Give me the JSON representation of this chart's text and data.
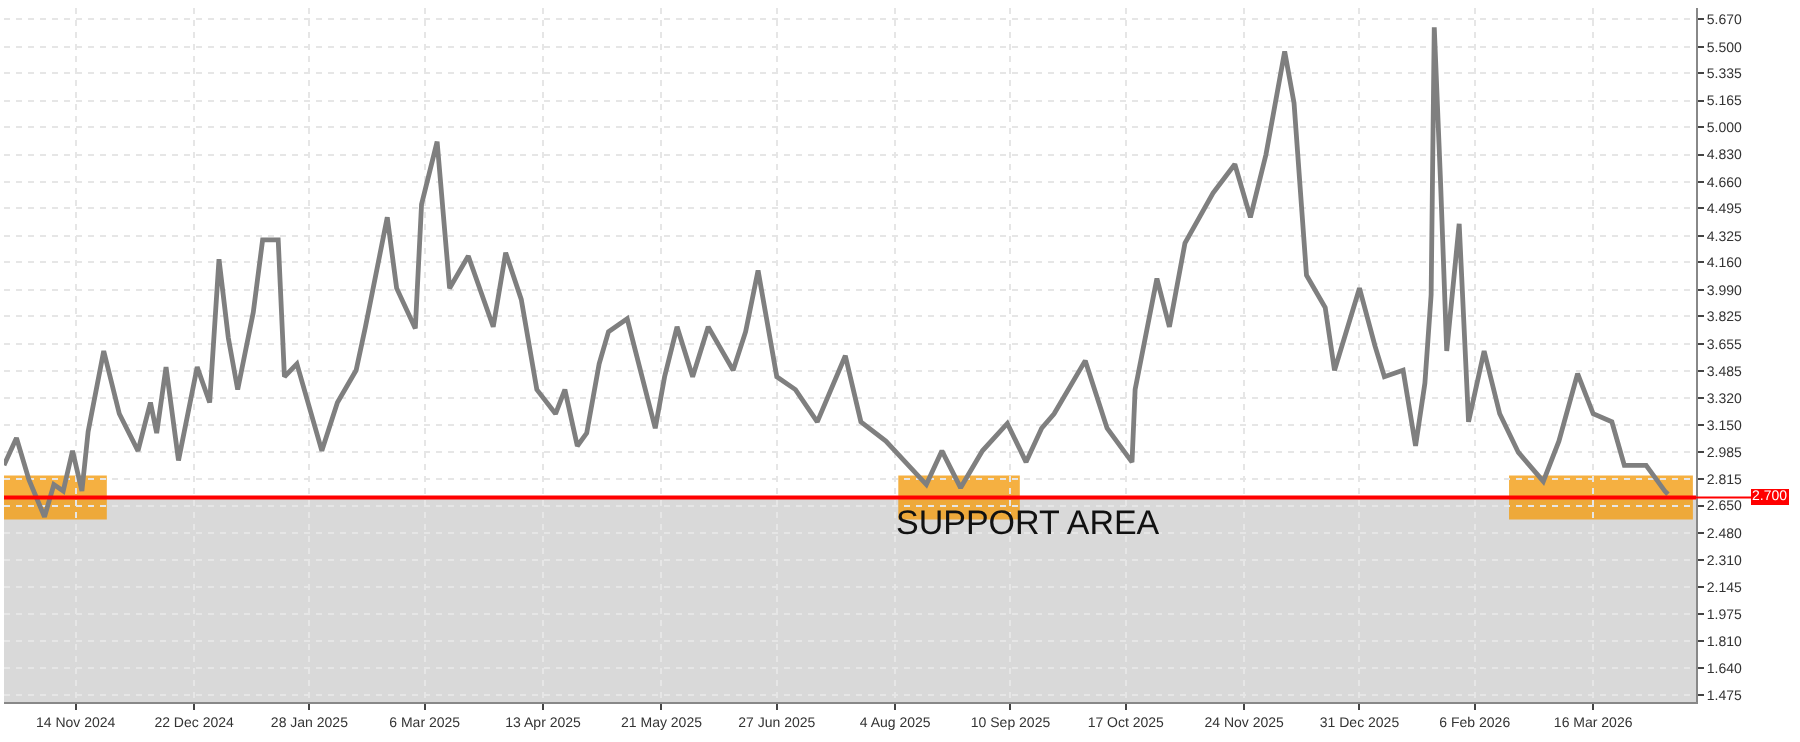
{
  "chart_data": {
    "type": "line",
    "x": [
      "2024-10-22",
      "2024-10-26",
      "2024-10-30",
      "2024-11-04",
      "2024-11-07",
      "2024-11-10",
      "2024-11-13",
      "2024-11-16",
      "2024-11-18",
      "2024-11-23",
      "2024-11-28",
      "2024-12-04",
      "2024-12-08",
      "2024-12-10",
      "2024-12-13",
      "2024-12-17",
      "2024-12-23",
      "2024-12-27",
      "2024-12-30",
      "2025-01-02",
      "2025-01-05",
      "2025-01-10",
      "2025-01-13",
      "2025-01-18",
      "2025-01-20",
      "2025-01-24",
      "2025-02-01",
      "2025-02-06",
      "2025-02-12",
      "2025-02-15",
      "2025-02-22",
      "2025-02-25",
      "2025-03-03",
      "2025-03-05",
      "2025-03-10",
      "2025-03-14",
      "2025-03-20",
      "2025-03-28",
      "2025-04-01",
      "2025-04-06",
      "2025-04-11",
      "2025-04-17",
      "2025-04-20",
      "2025-04-24",
      "2025-04-27",
      "2025-05-01",
      "2025-05-04",
      "2025-05-10",
      "2025-05-19",
      "2025-05-22",
      "2025-05-26",
      "2025-05-31",
      "2025-06-05",
      "2025-06-13",
      "2025-06-17",
      "2025-06-21",
      "2025-06-27",
      "2025-07-03",
      "2025-07-10",
      "2025-07-19",
      "2025-07-24",
      "2025-08-01",
      "2025-08-14",
      "2025-08-19",
      "2025-08-25",
      "2025-09-01",
      "2025-09-09",
      "2025-09-15",
      "2025-09-20",
      "2025-09-24",
      "2025-10-04",
      "2025-10-11",
      "2025-10-19",
      "2025-10-20",
      "2025-10-27",
      "2025-10-31",
      "2025-11-05",
      "2025-11-14",
      "2025-11-21",
      "2025-11-26",
      "2025-12-01",
      "2025-12-07",
      "2025-12-10",
      "2025-12-14",
      "2025-12-20",
      "2025-12-23",
      "2025-12-31",
      "2026-01-05",
      "2026-01-08",
      "2026-01-14",
      "2026-01-18",
      "2026-01-21",
      "2026-01-23",
      "2026-01-24",
      "2026-01-26",
      "2026-01-28",
      "2026-02-01",
      "2026-02-04",
      "2026-02-09",
      "2026-02-14",
      "2026-02-20",
      "2026-02-28",
      "2026-03-05",
      "2026-03-11",
      "2026-03-16",
      "2026-03-22",
      "2026-03-26",
      "2026-04-02",
      "2026-04-08",
      "2026-04-09"
    ],
    "series": [
      {
        "color": "#7f7f7f",
        "values": [
          2.9,
          3.07,
          2.81,
          2.58,
          2.78,
          2.74,
          2.99,
          2.74,
          3.11,
          3.61,
          3.22,
          2.99,
          3.29,
          3.1,
          3.51,
          2.93,
          3.51,
          3.29,
          4.18,
          3.69,
          3.37,
          3.85,
          4.3,
          4.3,
          3.45,
          3.53,
          2.99,
          3.29,
          3.49,
          3.76,
          4.44,
          4.0,
          3.75,
          4.52,
          4.91,
          4.0,
          4.2,
          3.76,
          4.22,
          3.93,
          3.37,
          3.22,
          3.37,
          3.02,
          3.1,
          3.53,
          3.73,
          3.81,
          3.13,
          3.45,
          3.76,
          3.45,
          3.76,
          3.49,
          3.73,
          4.11,
          3.45,
          3.37,
          3.17,
          3.58,
          3.17,
          3.05,
          2.78,
          2.99,
          2.76,
          2.99,
          3.16,
          2.92,
          3.13,
          3.22,
          3.55,
          3.13,
          2.92,
          3.37,
          4.06,
          3.76,
          4.28,
          4.59,
          4.77,
          4.44,
          4.83,
          5.47,
          5.15,
          4.08,
          3.88,
          3.49,
          4.0,
          3.64,
          3.45,
          3.49,
          3.02,
          3.41,
          3.96,
          5.62,
          4.67,
          3.61,
          4.4,
          3.17,
          3.61,
          3.22,
          2.98,
          2.8,
          3.05,
          3.47,
          3.22,
          3.17,
          2.9,
          2.9,
          2.74,
          2.72
        ]
      }
    ],
    "xlim": [
      "2024-10-22",
      "2026-04-18"
    ],
    "xticks": [
      {
        "value": "2024-11-14",
        "label": "14 Nov 2024"
      },
      {
        "value": "2024-12-22",
        "label": "22 Dec 2024"
      },
      {
        "value": "2025-01-28",
        "label": "28 Jan 2025"
      },
      {
        "value": "2025-03-06",
        "label": "6 Mar 2025"
      },
      {
        "value": "2025-04-13",
        "label": "13 Apr 2025"
      },
      {
        "value": "2025-05-21",
        "label": "21 May 2025"
      },
      {
        "value": "2025-06-27",
        "label": "27 Jun 2025"
      },
      {
        "value": "2025-08-04",
        "label": "4 Aug 2025"
      },
      {
        "value": "2025-09-10",
        "label": "10 Sep 2025"
      },
      {
        "value": "2025-10-17",
        "label": "17 Oct 2025"
      },
      {
        "value": "2025-11-24",
        "label": "24 Nov 2025"
      },
      {
        "value": "2025-12-31",
        "label": "31 Dec 2025"
      },
      {
        "value": "2026-02-06",
        "label": "6 Feb 2026"
      },
      {
        "value": "2026-03-16",
        "label": "16 Mar 2026"
      }
    ],
    "ylim": [
      1.43,
      5.74
    ],
    "yticks": [
      {
        "value": 1.475,
        "label": "1.475"
      },
      {
        "value": 1.64,
        "label": "1.640"
      },
      {
        "value": 1.81,
        "label": "1.810"
      },
      {
        "value": 1.975,
        "label": "1.975"
      },
      {
        "value": 2.145,
        "label": "2.145"
      },
      {
        "value": 2.31,
        "label": "2.310"
      },
      {
        "value": 2.48,
        "label": "2.480"
      },
      {
        "value": 2.65,
        "label": "2.650"
      },
      {
        "value": 2.815,
        "label": "2.815"
      },
      {
        "value": 2.985,
        "label": "2.985"
      },
      {
        "value": 3.15,
        "label": "3.150"
      },
      {
        "value": 3.32,
        "label": "3.320"
      },
      {
        "value": 3.485,
        "label": "3.485"
      },
      {
        "value": 3.655,
        "label": "3.655"
      },
      {
        "value": 3.825,
        "label": "3.825"
      },
      {
        "value": 3.99,
        "label": "3.990"
      },
      {
        "value": 4.16,
        "label": "4.160"
      },
      {
        "value": 4.325,
        "label": "4.325"
      },
      {
        "value": 4.495,
        "label": "4.495"
      },
      {
        "value": 4.66,
        "label": "4.660"
      },
      {
        "value": 4.83,
        "label": "4.830"
      },
      {
        "value": 5.0,
        "label": "5.000"
      },
      {
        "value": 5.165,
        "label": "5.165"
      },
      {
        "value": 5.335,
        "label": "5.335"
      },
      {
        "value": 5.5,
        "label": "5.500"
      },
      {
        "value": 5.67,
        "label": "5.670"
      }
    ],
    "bands": [
      {
        "axis": "y",
        "from": 1.43,
        "to": 2.7,
        "color": "#d9d9d9"
      },
      {
        "axis": "x",
        "from": "2024-10-22",
        "to": "2024-11-24",
        "color": "#f39c12"
      },
      {
        "axis": "x",
        "from": "2025-08-05",
        "to": "2025-09-13",
        "color": "#f39c12"
      },
      {
        "axis": "x",
        "from": "2026-02-17",
        "to": "2026-04-17",
        "color": "#f39c12"
      }
    ],
    "ref_lines": [
      {
        "axis": "y",
        "value": 2.7,
        "label": "2.700",
        "color": "#ff0000"
      }
    ],
    "annotations": [
      "SUPPORT AREA"
    ],
    "grid": true,
    "marker": "none",
    "line_style": "solid"
  }
}
